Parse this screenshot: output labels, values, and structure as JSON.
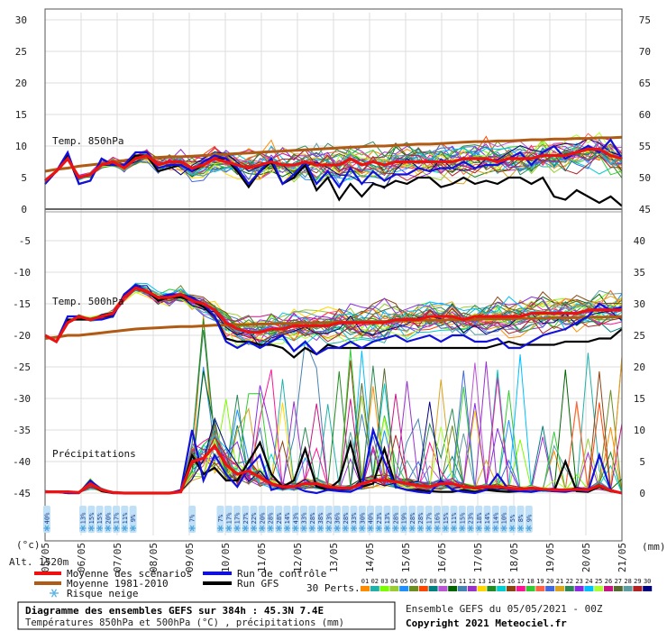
{
  "chart_data": {
    "type": "line",
    "panels": [
      {
        "name": "Temp. 850hPa",
        "left_axis": {
          "min": 0,
          "max": 30,
          "ticks": [
            "0",
            "5",
            "10",
            "15",
            "20",
            "25",
            "30"
          ]
        },
        "right_axis": {
          "min": 45,
          "max": 75,
          "ticks": [
            "45",
            "50",
            "55",
            "60",
            "65",
            "70",
            "75"
          ]
        }
      },
      {
        "name": "Temp. 500hPa",
        "left_axis": {
          "min": -45,
          "max": -5,
          "ticks": [
            "-45",
            "-40",
            "-35",
            "-30",
            "-25",
            "-20",
            "-15",
            "-10",
            "-5"
          ]
        },
        "right_axis": {
          "min": 0,
          "max": 40,
          "ticks": [
            "0",
            "5",
            "10",
            "15",
            "20",
            "25",
            "30",
            "35",
            "40"
          ]
        }
      }
    ],
    "precip_label": "Précipitations",
    "x_dates": [
      "05/05",
      "06/05",
      "07/05",
      "08/05",
      "09/05",
      "10/05",
      "11/05",
      "12/05",
      "13/05",
      "14/05",
      "15/05",
      "16/05",
      "17/05",
      "18/05",
      "19/05",
      "20/05",
      "21/05"
    ],
    "left_unit": "(°c)",
    "right_unit": "(mm)",
    "alt_label": "Alt. 1520m",
    "series": [
      {
        "name": "Moyenne des scénarios",
        "color": "#ee1111",
        "t850": [
          4.5,
          6,
          8,
          5,
          5.5,
          7,
          7.5,
          6.5,
          8,
          8.5,
          7,
          7.5,
          7.5,
          6.5,
          7,
          8,
          7.5,
          7,
          6.5,
          7,
          7.5,
          7,
          7,
          7.5,
          7,
          7,
          7,
          8,
          7,
          7.5,
          7,
          7.5,
          7.5,
          7.5,
          7.5,
          7.5,
          7.5,
          8,
          8,
          8,
          7.5,
          8,
          8,
          8,
          8.5,
          8.5,
          8.5,
          9,
          9.5,
          9.5,
          8.5,
          8
        ],
        "t500": [
          -20,
          -21,
          -18,
          -17,
          -17.5,
          -17,
          -16.5,
          -14,
          -12.5,
          -13,
          -14,
          -14,
          -13.5,
          -14.5,
          -15,
          -16,
          -18,
          -19,
          -19.5,
          -19.5,
          -19,
          -19,
          -18.5,
          -18.5,
          -18.5,
          -18.5,
          -18,
          -18,
          -18,
          -18,
          -18,
          -17.5,
          -17.5,
          -17.5,
          -17,
          -17,
          -17,
          -17.5,
          -17,
          -17,
          -17,
          -17,
          -17,
          -16.5,
          -16.5,
          -16.5,
          -16.5,
          -16.5,
          -16,
          -16,
          -16,
          -16
        ],
        "precip": [
          0.2,
          0.2,
          0.2,
          0.1,
          1.5,
          0.5,
          0.1,
          0,
          0,
          0,
          0,
          0,
          0.2,
          5,
          5.5,
          7.5,
          4.5,
          3,
          3.5,
          2.5,
          1.5,
          1,
          1,
          1.5,
          1.5,
          1,
          0.8,
          0.8,
          1.5,
          2,
          2,
          1.8,
          1.5,
          1.2,
          1,
          1.5,
          1.5,
          1,
          0.8,
          1,
          1,
          0.8,
          0.6,
          0.8,
          0.6,
          0.5,
          0.5,
          0.6,
          0.5,
          1.2,
          0.4,
          0
        ]
      },
      {
        "name": "Moyenne 1981-2010",
        "color": "#b05a14",
        "t850": [
          6,
          6.3,
          6.5,
          6.8,
          7,
          7.2,
          7.5,
          7.7,
          8,
          8.1,
          8.2,
          8.3,
          8.3,
          8.4,
          8.5,
          8.6,
          8.7,
          8.8,
          8.9,
          9,
          9.1,
          9.2,
          9.3,
          9.4,
          9.5,
          9.6,
          9.7,
          9.8,
          9.9,
          10,
          10,
          10.1,
          10.2,
          10.3,
          10.3,
          10.4,
          10.5,
          10.6,
          10.7,
          10.7,
          10.8,
          10.8,
          10.9,
          11,
          11,
          11.1,
          11.1,
          11.2,
          11.2,
          11.3,
          11.3,
          11.4
        ],
        "t500": [
          -20.5,
          -20.3,
          -20,
          -20,
          -19.8,
          -19.6,
          -19.4,
          -19.2,
          -19,
          -18.9,
          -18.8,
          -18.7,
          -18.6,
          -18.6,
          -18.5,
          -18.4,
          -18.4,
          -18.3,
          -18.3,
          -18.2,
          -18.2,
          -18.1,
          -18.1,
          -18,
          -18,
          -18,
          -17.9,
          -17.9,
          -17.8,
          -17.8,
          -17.8,
          -17.7,
          -17.7,
          -17.6,
          -17.6,
          -17.6,
          -17.5,
          -17.5,
          -17.5,
          -17.4,
          -17.4,
          -17.4,
          -17.3,
          -17.3,
          -17.3,
          -17.2,
          -17.2,
          -17.2,
          -17.1,
          -17.1,
          -17.1,
          -17
        ]
      },
      {
        "name": "Run de contrôle",
        "color": "#1111dd",
        "t850": [
          4,
          6,
          9,
          4,
          4.5,
          8,
          7,
          7,
          9,
          9,
          6.5,
          7,
          7,
          6,
          7.5,
          8.5,
          8,
          6.5,
          4,
          6,
          8,
          4,
          5.5,
          7.5,
          4,
          6,
          3.5,
          6.5,
          4,
          6,
          4.5,
          5.5,
          5.5,
          6.5,
          6,
          6.5,
          6.5,
          7.5,
          6.5,
          7,
          7,
          8,
          9,
          7,
          9,
          10,
          8,
          9,
          10,
          9,
          11,
          8
        ],
        "t500": [
          -20,
          -21,
          -17,
          -17,
          -17.5,
          -17.5,
          -17,
          -13.5,
          -12,
          -13,
          -14,
          -13.5,
          -13.5,
          -14,
          -15,
          -17,
          -21,
          -22,
          -21,
          -22,
          -21,
          -20,
          -22.5,
          -21,
          -23,
          -22,
          -22,
          -21,
          -22,
          -21,
          -20.5,
          -20,
          -21,
          -20.5,
          -20,
          -21,
          -20,
          -20,
          -21,
          -21,
          -20.5,
          -22,
          -22,
          -21,
          -20,
          -19.5,
          -19,
          -18,
          -17,
          -15,
          -16,
          -15.5
        ],
        "precip": [
          0.3,
          0.2,
          0,
          0,
          2,
          0.5,
          0,
          0,
          0,
          0,
          0,
          0,
          0.5,
          10,
          2,
          6,
          3,
          1,
          4,
          6,
          0.5,
          1,
          1,
          0.3,
          0,
          0.5,
          0.3,
          0.2,
          1,
          10,
          5,
          1,
          0.5,
          0.2,
          0,
          2,
          0.5,
          0.2,
          0,
          0.5,
          3,
          0.5,
          0.3,
          0.2,
          0.5,
          0.3,
          0.2,
          0.5,
          0.3,
          6,
          0.5,
          0
        ]
      },
      {
        "name": "Run GFS",
        "color": "#000000",
        "t850": [
          4,
          6,
          8.5,
          4,
          4.5,
          8,
          7,
          7,
          8.5,
          8.5,
          6,
          6.5,
          7,
          6,
          7,
          8,
          8,
          6,
          3.5,
          6,
          7.5,
          4,
          5,
          7,
          3,
          5,
          1.5,
          4,
          2,
          4,
          3.5,
          4.5,
          4,
          5,
          5,
          3.5,
          4,
          5,
          4,
          4.5,
          4,
          5,
          5,
          4,
          5,
          2,
          1.5,
          3,
          2,
          1,
          2,
          0.5
        ],
        "t500": [
          -20,
          -21,
          -17.5,
          -17.5,
          -17.5,
          -17,
          -17,
          -13.5,
          -12.5,
          -13,
          -14.5,
          -14,
          -14,
          -14.5,
          -15.5,
          -17,
          -20.5,
          -21,
          -21,
          -21.5,
          -21.5,
          -22,
          -23.5,
          -22,
          -23,
          -21.5,
          -22,
          -22,
          -22,
          -22,
          -22,
          -22,
          -22,
          -22,
          -22,
          -22,
          -22,
          -22,
          -22,
          -22,
          -21.5,
          -21,
          -21.5,
          -21.5,
          -21.5,
          -21.5,
          -21,
          -21,
          -21,
          -20.5,
          -20.5,
          -19
        ],
        "precip": [
          0.2,
          0.2,
          0,
          0,
          1.5,
          0.3,
          0,
          0,
          0,
          0,
          0,
          0,
          0.3,
          6,
          3,
          4,
          2,
          2,
          5,
          8,
          3,
          1,
          2,
          7,
          1,
          0.5,
          2,
          8,
          1,
          1.5,
          7,
          1,
          0.5,
          0.5,
          0.3,
          0.2,
          0.2,
          0.5,
          0.2,
          0.5,
          0.3,
          0.2,
          0.3,
          0.2,
          0.5,
          0.3,
          5,
          0.3,
          0.2,
          1,
          0.3,
          0
        ]
      }
    ],
    "snow_risk": {
      "label": "Risque neige",
      "groups": [
        [
          "40%"
        ],
        [
          "13%",
          "15%",
          "15%",
          "20%",
          "17%",
          "11%",
          "9%"
        ],
        [
          "7%"
        ],
        [
          "7%",
          "17%",
          "17%",
          "27%",
          "22%",
          "20%",
          "28%",
          "28%",
          "14%",
          "43%",
          "33%",
          "28%",
          "38%",
          "23%",
          "36%",
          "28%",
          "33%",
          "30%",
          "40%",
          "23%",
          "13%",
          "28%",
          "19%",
          "28%",
          "28%",
          "17%",
          "16%",
          "15%",
          "11%",
          "15%",
          "23%",
          "18%",
          "14%",
          "14%",
          "10%",
          "5%",
          "8%",
          "9%"
        ]
      ]
    },
    "perts_label": "30 Perts.",
    "perts": [
      "01",
      "02",
      "03",
      "04",
      "05",
      "06",
      "07",
      "08",
      "09",
      "10",
      "11",
      "12",
      "13",
      "14",
      "15",
      "16",
      "17",
      "18",
      "19",
      "20",
      "21",
      "22",
      "23",
      "24",
      "25",
      "26",
      "27",
      "28",
      "29",
      "30"
    ],
    "pert_colors": [
      "#ff8c00",
      "#20b2aa",
      "#7cfc00",
      "#9acd32",
      "#1e90ff",
      "#6b8e23",
      "#ff4500",
      "#008080",
      "#ba55d3",
      "#006400",
      "#4682b4",
      "#9932cc",
      "#ffd700",
      "#228b22",
      "#00ced1",
      "#8b4513",
      "#ff1493",
      "#32cd32",
      "#ff6347",
      "#4169e1",
      "#daa520",
      "#2e8b57",
      "#8a2be2",
      "#00bfff",
      "#adff2f",
      "#c71585",
      "#556b2f",
      "#5f9ea0",
      "#b22222",
      "#000080"
    ]
  },
  "footer": {
    "title": "Diagramme des ensembles GEFS sur 384h : 45.3N 7.4E",
    "subtitle": "Températures 850hPa et 500hPa (°C) , précipitations (mm)",
    "run": "Ensemble GEFS du 05/05/2021 - 00Z",
    "copyright": "Copyright 2021 Meteociel.fr"
  }
}
